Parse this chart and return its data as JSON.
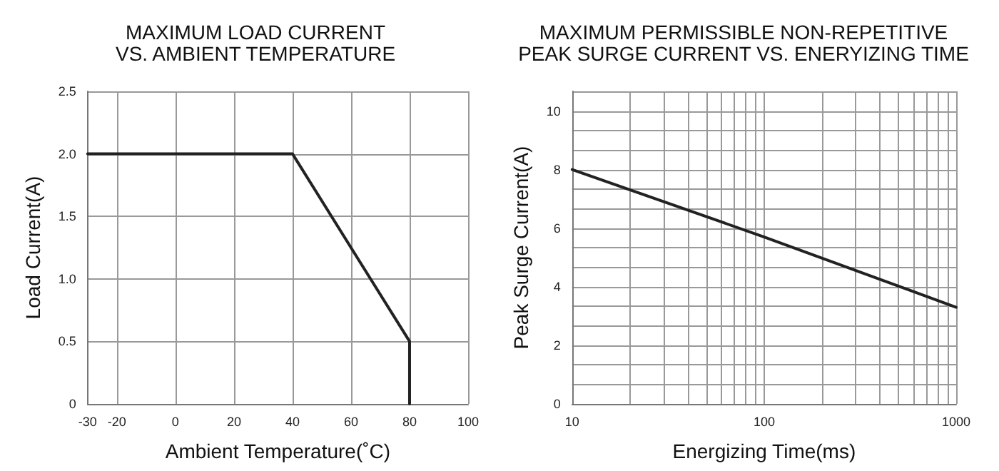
{
  "chart_data": [
    {
      "type": "line",
      "title": "MAXIMUM LOAD CURRENT\nVS. AMBIENT TEMPERATURE",
      "xlabel": "Ambient Temperature(˚C)",
      "ylabel": "Load Current(A)",
      "x": [
        -30,
        40,
        80,
        80
      ],
      "values": [
        2.0,
        2.0,
        0.5,
        0
      ],
      "color": "#222222",
      "xlim": [
        -30,
        100
      ],
      "xticks": [
        -30,
        -20,
        0,
        20,
        40,
        60,
        80,
        100
      ],
      "ylim": [
        0,
        2.5
      ],
      "yticks": [
        0,
        0.5,
        {
          "value": 1,
          "label": "1.0"
        },
        1.5,
        {
          "value": 2,
          "label": "2.0"
        },
        2.5
      ],
      "grid": true,
      "marker": "none",
      "line_style": "solid"
    },
    {
      "type": "line",
      "title": "MAXIMUM PERMISSIBLE NON-REPETITIVE\nPEAK SURGE CURRENT VS. ENERYIZING TIME",
      "xlabel": "Energizing Time(ms)",
      "ylabel": "Peak Surge Current(A)",
      "x": [
        10,
        100,
        1000
      ],
      "values": [
        8,
        5.7,
        3.3
      ],
      "color": "#222222",
      "log": "x",
      "xlim": [
        10,
        1000
      ],
      "xticks": [
        10,
        {
          "value": 20,
          "label": null
        },
        {
          "value": 30,
          "label": null
        },
        {
          "value": 40,
          "label": null
        },
        {
          "value": 50,
          "label": null
        },
        {
          "value": 60,
          "label": null
        },
        {
          "value": 70,
          "label": null
        },
        {
          "value": 80,
          "label": null
        },
        {
          "value": 90,
          "label": null
        },
        100,
        {
          "value": 200,
          "label": null
        },
        {
          "value": 300,
          "label": null
        },
        {
          "value": 400,
          "label": null
        },
        {
          "value": 500,
          "label": null
        },
        {
          "value": 600,
          "label": null
        },
        {
          "value": 700,
          "label": null
        },
        {
          "value": 800,
          "label": null
        },
        {
          "value": 900,
          "label": null
        },
        1000
      ],
      "ylim": [
        0,
        10.67
      ],
      "yticks": [
        0,
        {
          "value": 0.67,
          "label": null
        },
        {
          "value": 1.33,
          "label": null
        },
        2,
        {
          "value": 2.67,
          "label": null
        },
        {
          "value": 3.33,
          "label": null
        },
        4,
        {
          "value": 4.67,
          "label": null
        },
        {
          "value": 5.33,
          "label": null
        },
        6,
        {
          "value": 6.67,
          "label": null
        },
        {
          "value": 7.33,
          "label": null
        },
        8,
        {
          "value": 8.67,
          "label": null
        },
        {
          "value": 9.33,
          "label": null
        },
        10,
        {
          "value": 10.67,
          "label": null
        }
      ],
      "grid": true,
      "marker": "none",
      "line_style": "solid"
    }
  ]
}
